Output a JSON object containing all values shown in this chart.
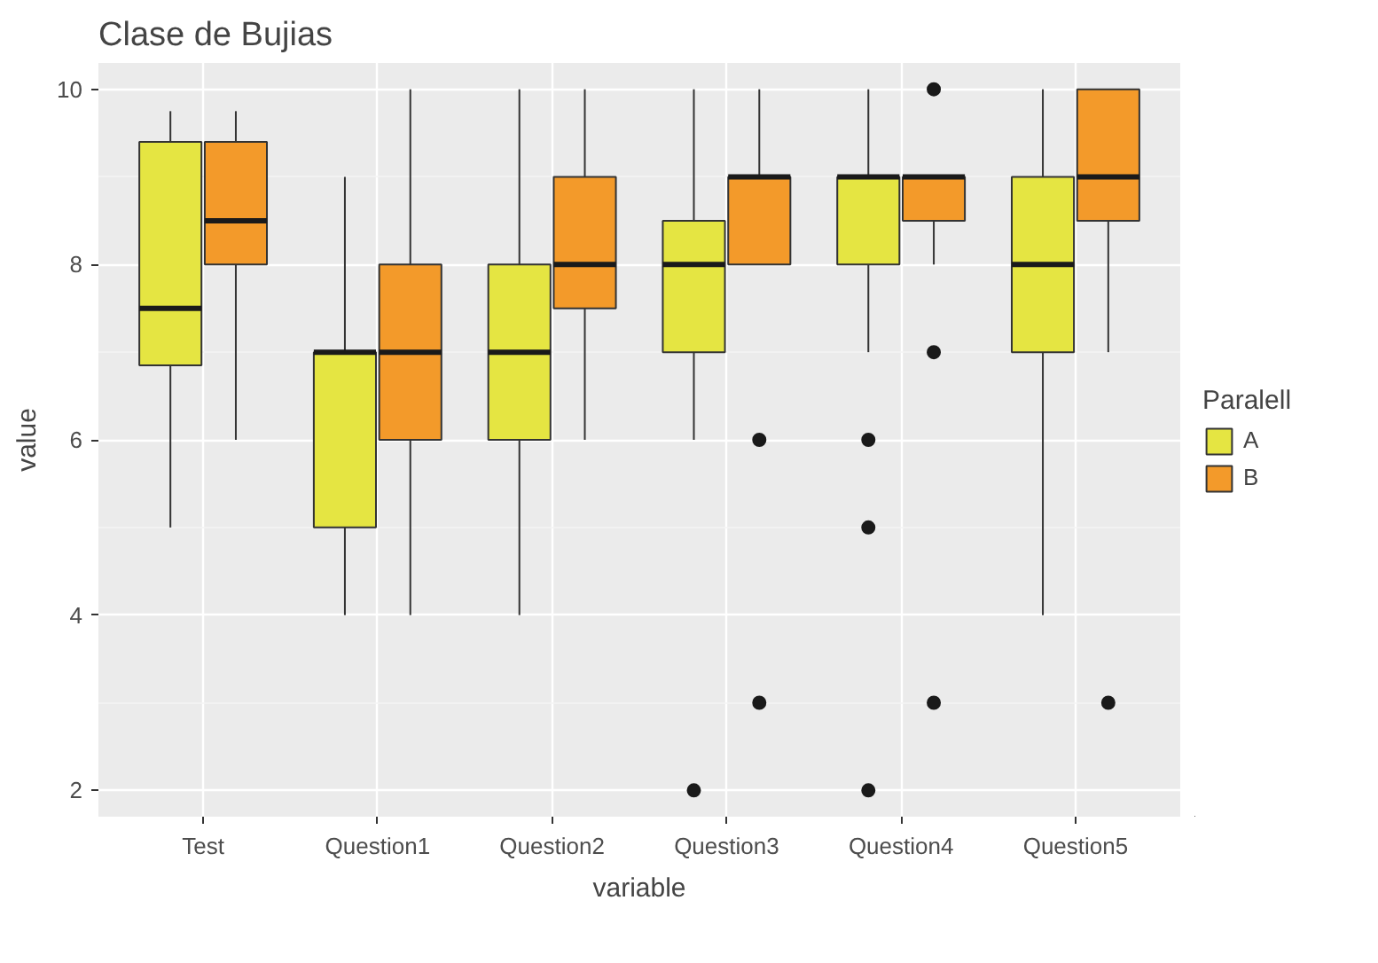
{
  "chart_data": {
    "type": "box",
    "title": "Clase de Bujias",
    "xlabel": "variable",
    "ylabel": "value",
    "legend_title": "Paralell",
    "categories": [
      "Test",
      "Question1",
      "Question2",
      "Question3",
      "Question4",
      "Question5"
    ],
    "series": [
      {
        "name": "A",
        "color": "#e5e542",
        "boxes": [
          {
            "low": 5,
            "q1": 6.85,
            "median": 7.5,
            "q3": 9.4,
            "high": 9.75
          },
          {
            "low": 4,
            "q1": 5,
            "median": 7,
            "q3": 7,
            "high": 9
          },
          {
            "low": 4,
            "q1": 6,
            "median": 7,
            "q3": 8,
            "high": 10
          },
          {
            "low": 6,
            "q1": 7,
            "median": 8,
            "q3": 8.5,
            "high": 10,
            "outliers": [
              2
            ]
          },
          {
            "low": 7,
            "q1": 8,
            "median": 9,
            "q3": 9,
            "high": 10,
            "outliers": [
              6,
              5,
              2
            ]
          },
          {
            "low": 4,
            "q1": 7,
            "median": 8,
            "q3": 9,
            "high": 10
          }
        ]
      },
      {
        "name": "B",
        "color": "#f39a2a",
        "boxes": [
          {
            "low": 6,
            "q1": 8,
            "median": 8.5,
            "q3": 9.4,
            "high": 9.75
          },
          {
            "low": 4,
            "q1": 6,
            "median": 7,
            "q3": 8,
            "high": 10
          },
          {
            "low": 6,
            "q1": 7.5,
            "median": 8,
            "q3": 9,
            "high": 10
          },
          {
            "low": 8,
            "q1": 8,
            "median": 9,
            "q3": 9,
            "high": 10,
            "outliers": [
              6,
              3
            ]
          },
          {
            "low": 8,
            "q1": 8.5,
            "median": 9,
            "q3": 9,
            "high": 9,
            "outliers": [
              10,
              7,
              3
            ]
          },
          {
            "low": 7,
            "q1": 8.5,
            "median": 9,
            "q3": 10,
            "high": 10,
            "outliers": [
              3
            ]
          }
        ]
      }
    ],
    "ylim": [
      1.7,
      10.3
    ],
    "yticks": [
      2,
      4,
      6,
      8,
      10
    ],
    "grid": true,
    "legend": "right"
  }
}
